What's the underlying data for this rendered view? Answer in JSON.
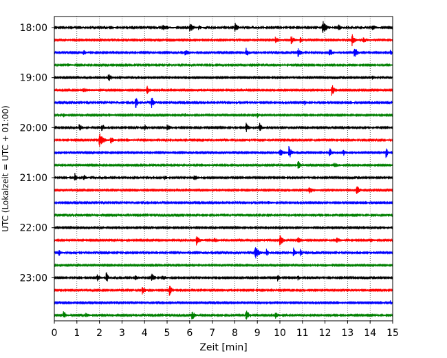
{
  "chart_data": {
    "type": "line",
    "title": "",
    "xlabel": "Zeit  [min]",
    "ylabel": "UTC (Lokalzeit = UTC + 01:00)",
    "xlim": [
      0,
      15
    ],
    "xticks": [
      "0",
      "1",
      "2",
      "3",
      "4",
      "5",
      "6",
      "7",
      "8",
      "9",
      "10",
      "11",
      "12",
      "13",
      "14",
      "15"
    ],
    "yticks": [
      {
        "label": "18:00",
        "row": 0
      },
      {
        "label": "19:00",
        "row": 4
      },
      {
        "label": "20:00",
        "row": 8
      },
      {
        "label": "21:00",
        "row": 12
      },
      {
        "label": "22:00",
        "row": 16
      },
      {
        "label": "23:00",
        "row": 20
      }
    ],
    "grid": "vertical dotted at each minute",
    "trace_colors": [
      "#000000",
      "#ff0000",
      "#0000ff",
      "#008000"
    ],
    "rows": [
      {
        "start": "18:00",
        "color": "#000000",
        "events": [
          [
            4.8,
            0.35,
            0.6
          ],
          [
            6.0,
            0.6,
            0.4
          ],
          [
            6.4,
            0.3,
            0.3
          ],
          [
            8.0,
            0.7,
            0.3
          ],
          [
            11.9,
            0.9,
            0.4
          ],
          [
            12.6,
            0.4,
            0.3
          ],
          [
            14.1,
            0.3,
            0.4
          ]
        ]
      },
      {
        "start": "18:15",
        "color": "#ff0000",
        "events": [
          [
            9.8,
            0.4,
            0.4
          ],
          [
            10.5,
            0.7,
            0.3
          ],
          [
            10.9,
            0.4,
            0.3
          ],
          [
            13.2,
            0.8,
            0.3
          ],
          [
            13.7,
            0.35,
            0.4
          ]
        ]
      },
      {
        "start": "18:30",
        "color": "#0000ff",
        "events": [
          [
            1.3,
            0.4,
            0.2
          ],
          [
            5.8,
            0.35,
            0.5
          ],
          [
            8.5,
            0.6,
            0.3
          ],
          [
            10.8,
            0.7,
            0.3
          ],
          [
            12.2,
            0.5,
            0.4
          ],
          [
            13.3,
            0.9,
            0.3
          ],
          [
            14.9,
            0.4,
            0.2
          ]
        ]
      },
      {
        "start": "18:45",
        "color": "#008000",
        "events": [
          [
            0.6,
            0.3,
            0.3
          ]
        ]
      },
      {
        "start": "19:00",
        "color": "#000000",
        "events": [
          [
            2.4,
            0.6,
            0.3
          ],
          [
            2.9,
            0.2,
            0.4
          ],
          [
            14.1,
            0.2,
            0.4
          ]
        ]
      },
      {
        "start": "19:15",
        "color": "#ff0000",
        "events": [
          [
            1.3,
            0.25,
            0.8
          ],
          [
            4.1,
            0.7,
            0.3
          ],
          [
            12.3,
            0.9,
            0.3
          ]
        ]
      },
      {
        "start": "19:30",
        "color": "#0000ff",
        "events": [
          [
            3.6,
            1.0,
            0.2
          ],
          [
            4.3,
            0.9,
            0.3
          ],
          [
            11.1,
            0.4,
            0.2
          ]
        ]
      },
      {
        "start": "19:45",
        "color": "#008000",
        "events": [
          [
            0.4,
            0.3,
            0.3
          ],
          [
            2.4,
            0.2,
            0.3
          ],
          [
            5.8,
            0.2,
            0.4
          ],
          [
            9.0,
            0.3,
            0.2
          ]
        ]
      },
      {
        "start": "20:00",
        "color": "#000000",
        "events": [
          [
            1.1,
            0.5,
            0.3
          ],
          [
            2.1,
            0.4,
            0.3
          ],
          [
            4.0,
            0.4,
            0.3
          ],
          [
            5.0,
            0.4,
            0.4
          ],
          [
            8.5,
            0.6,
            0.3
          ],
          [
            9.1,
            0.6,
            0.3
          ]
        ]
      },
      {
        "start": "20:15",
        "color": "#ff0000",
        "events": [
          [
            2.0,
            1.0,
            0.4
          ],
          [
            2.5,
            0.5,
            0.3
          ],
          [
            3.2,
            0.2,
            0.5
          ]
        ]
      },
      {
        "start": "20:30",
        "color": "#0000ff",
        "events": [
          [
            10.0,
            0.5,
            0.4
          ],
          [
            10.4,
            0.8,
            0.3
          ],
          [
            12.2,
            0.6,
            0.3
          ],
          [
            12.8,
            0.4,
            0.3
          ],
          [
            14.7,
            0.9,
            0.2
          ]
        ]
      },
      {
        "start": "20:45",
        "color": "#008000",
        "events": [
          [
            6.5,
            0.2,
            0.6
          ],
          [
            10.8,
            0.8,
            0.2
          ],
          [
            12.4,
            0.3,
            0.5
          ]
        ]
      },
      {
        "start": "21:00",
        "color": "#000000",
        "events": [
          [
            0.9,
            0.7,
            0.2
          ],
          [
            1.3,
            0.4,
            0.3
          ],
          [
            4.9,
            0.4,
            0.2
          ],
          [
            6.2,
            0.5,
            0.3
          ]
        ]
      },
      {
        "start": "21:15",
        "color": "#ff0000",
        "events": [
          [
            11.3,
            0.4,
            0.5
          ],
          [
            13.4,
            0.8,
            0.3
          ]
        ]
      },
      {
        "start": "21:30",
        "color": "#0000ff",
        "events": [
          [
            9.5,
            0.15,
            0.5
          ]
        ]
      },
      {
        "start": "21:45",
        "color": "#008000",
        "events": []
      },
      {
        "start": "22:00",
        "color": "#000000",
        "events": [
          [
            5.1,
            0.15,
            0.2
          ],
          [
            11.2,
            0.15,
            0.3
          ]
        ]
      },
      {
        "start": "22:15",
        "color": "#ff0000",
        "events": [
          [
            6.3,
            0.8,
            0.3
          ],
          [
            7.1,
            0.3,
            0.4
          ],
          [
            10.0,
            0.8,
            0.3
          ],
          [
            10.8,
            0.4,
            0.4
          ],
          [
            12.5,
            0.4,
            0.4
          ],
          [
            14.0,
            0.3,
            0.3
          ]
        ]
      },
      {
        "start": "22:30",
        "color": "#0000ff",
        "events": [
          [
            0.2,
            0.5,
            0.2
          ],
          [
            8.9,
            0.9,
            0.4
          ],
          [
            9.4,
            0.6,
            0.2
          ],
          [
            10.6,
            0.8,
            0.2
          ],
          [
            10.9,
            0.5,
            0.2
          ]
        ]
      },
      {
        "start": "22:45",
        "color": "#008000",
        "events": [
          [
            12.0,
            0.15,
            0.5
          ]
        ]
      },
      {
        "start": "23:00",
        "color": "#000000",
        "events": [
          [
            1.9,
            0.5,
            0.3
          ],
          [
            2.3,
            0.9,
            0.2
          ],
          [
            3.6,
            0.3,
            0.4
          ],
          [
            4.3,
            0.7,
            0.3
          ],
          [
            4.8,
            0.3,
            0.3
          ],
          [
            9.9,
            0.5,
            0.2
          ],
          [
            10.8,
            0.4,
            0.2
          ]
        ]
      },
      {
        "start": "23:15",
        "color": "#ff0000",
        "events": [
          [
            3.9,
            0.6,
            0.3
          ],
          [
            5.1,
            0.8,
            0.3
          ]
        ]
      },
      {
        "start": "23:30",
        "color": "#0000ff",
        "events": [
          [
            12.5,
            0.2,
            0.4
          ],
          [
            14.9,
            0.25,
            0.2
          ]
        ]
      },
      {
        "start": "23:45",
        "color": "#008000",
        "events": [
          [
            0.4,
            0.5,
            0.3
          ],
          [
            1.4,
            0.3,
            0.3
          ],
          [
            6.1,
            0.7,
            0.3
          ],
          [
            8.5,
            0.7,
            0.3
          ],
          [
            9.8,
            0.4,
            0.3
          ]
        ]
      }
    ]
  }
}
